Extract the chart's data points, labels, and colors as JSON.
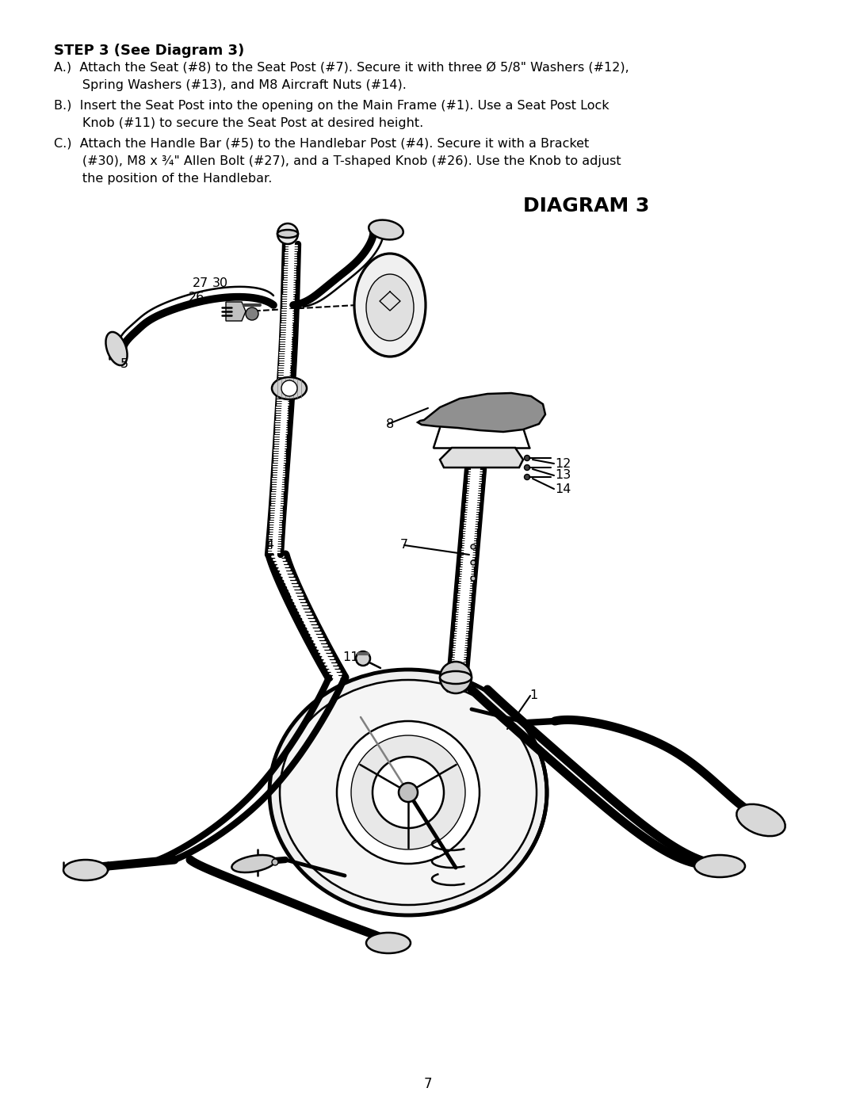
{
  "background_color": "#ffffff",
  "page_number": "7",
  "step_title": "STEP 3 (See Diagram 3)",
  "instructions_A_line1": "A.)  Attach the Seat (#8) to the Seat Post (#7). Secure it with three Ø 5/8\" Washers (#12),",
  "instructions_A_line2": "       Spring Washers (#13), and M8 Aircraft Nuts (#14).",
  "instructions_B_line1": "B.)  Insert the Seat Post into the opening on the Main Frame (#1). Use a Seat Post Lock",
  "instructions_B_line2": "       Knob (#11) to secure the Seat Post at desired height.",
  "instructions_C_line1": "C.)  Attach the Handle Bar (#5) to the Handlebar Post (#4). Secure it with a Bracket",
  "instructions_C_line2": "       (#30), M8 x ¾\" Allen Bolt (#27), and a T-shaped Knob (#26). Use the Knob to adjust",
  "instructions_C_line3": "       the position of the Handlebar.",
  "diagram_title": "DIAGRAM 3",
  "text_color": "#000000",
  "label_fontsize": 11.5,
  "title_fontsize": 13,
  "diagram_title_fontsize": 18,
  "page_num_fontsize": 12
}
